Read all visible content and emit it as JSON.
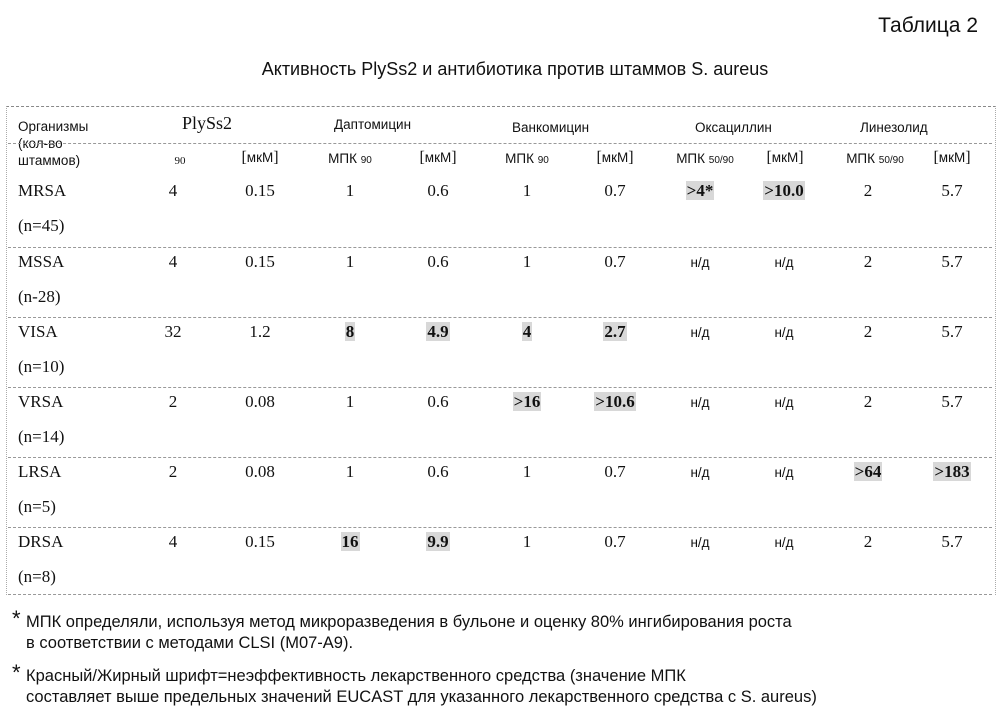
{
  "table_label": "Таблица 2",
  "title": "Активность PlySs2 и антибиотика против штаммов S. aureus",
  "header": {
    "organisms": [
      "Организмы",
      "(кол-во",
      "штаммов)"
    ],
    "groups": [
      "PlySs2",
      "Даптомицин",
      "Ванкомицин",
      "Оксациллин",
      "Линезолид"
    ],
    "sub": {
      "p_mic": "90",
      "unit": "мкМ",
      "mic": "МПК",
      "sub90": "90",
      "sub5090": "50/90"
    }
  },
  "rows": [
    {
      "org": "MRSA",
      "count": "(n=45)",
      "v": [
        "4",
        "0.15",
        "1",
        "0.6",
        "1",
        "0.7",
        ">4*",
        ">10.0",
        "2",
        "5.7"
      ],
      "hl": [
        false,
        false,
        false,
        false,
        false,
        false,
        true,
        true,
        false,
        false
      ]
    },
    {
      "org": "MSSA",
      "count": "(n-28)",
      "v": [
        "4",
        "0.15",
        "1",
        "0.6",
        "1",
        "0.7",
        "н/д",
        "н/д",
        "2",
        "5.7"
      ],
      "hl": [
        false,
        false,
        false,
        false,
        false,
        false,
        false,
        false,
        false,
        false
      ]
    },
    {
      "org": "VISA",
      "count": "(n=10)",
      "v": [
        "32",
        "1.2",
        "8",
        "4.9",
        "4",
        "2.7",
        "н/д",
        "н/д",
        "2",
        "5.7"
      ],
      "hl": [
        false,
        false,
        true,
        true,
        true,
        true,
        false,
        false,
        false,
        false
      ]
    },
    {
      "org": "VRSA",
      "count": "(n=14)",
      "v": [
        "2",
        "0.08",
        "1",
        "0.6",
        ">16",
        ">10.6",
        "н/д",
        "н/д",
        "2",
        "5.7"
      ],
      "hl": [
        false,
        false,
        false,
        false,
        true,
        true,
        false,
        false,
        false,
        false
      ]
    },
    {
      "org": "LRSA",
      "count": "(n=5)",
      "v": [
        "2",
        "0.08",
        "1",
        "0.6",
        "1",
        "0.7",
        "н/д",
        "н/д",
        ">64",
        ">183"
      ],
      "hl": [
        false,
        false,
        false,
        false,
        false,
        false,
        false,
        false,
        true,
        true
      ]
    },
    {
      "org": "DRSA",
      "count": "(n=8)",
      "v": [
        "4",
        "0.15",
        "16",
        "9.9",
        "1",
        "0.7",
        "н/д",
        "н/д",
        "2",
        "5.7"
      ],
      "hl": [
        false,
        false,
        true,
        true,
        false,
        false,
        false,
        false,
        false,
        false
      ]
    }
  ],
  "notes": {
    "star": "*",
    "note1": [
      "МПК определяли, используя метод микроразведения в бульоне и оценку 80% ингибирования роста",
      "в соответствии с методами CLSI (M07-A9)."
    ],
    "note2": [
      "Красный/Жирный шрифт=неэффективность лекарственного средства (значение МПК",
      "составляет выше предельных значений EUCAST для указанного лекарственного средства с S. aureus)"
    ]
  }
}
